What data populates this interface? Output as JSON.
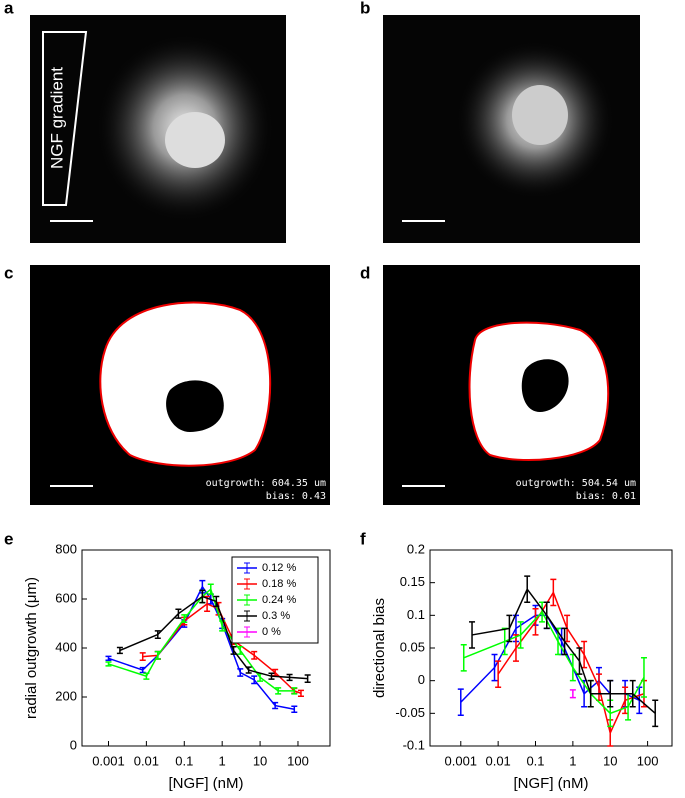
{
  "panels": {
    "a": {
      "letter": "a",
      "label": "NGF gradient"
    },
    "b": {
      "letter": "b"
    },
    "c": {
      "letter": "c",
      "outgrowth": "outgrowth: 604.35 um",
      "bias": "bias: 0.43"
    },
    "d": {
      "letter": "d",
      "outgrowth": "outgrowth: 504.54 um",
      "bias": "bias: 0.01"
    },
    "e": {
      "letter": "e"
    },
    "f": {
      "letter": "f"
    }
  },
  "chart_data": [
    {
      "type": "line",
      "xlabel": "[NGF] (nM)",
      "ylabel": "radial outgrowth (μm)",
      "xscale": "log",
      "xlim": [
        0.0002,
        700
      ],
      "ylim": [
        0,
        800
      ],
      "xticks": [
        0.001,
        0.01,
        0.1,
        1,
        10,
        100
      ],
      "yticks": [
        0,
        200,
        400,
        600,
        800
      ],
      "legend": "upper right",
      "series": [
        {
          "name": "0.12 %",
          "color": "#0000ff",
          "x": [
            0.001,
            0.008,
            0.02,
            0.1,
            0.3,
            0.5,
            1,
            3,
            7,
            25,
            80
          ],
          "values": [
            358,
            310,
            370,
            500,
            650,
            600,
            500,
            300,
            270,
            165,
            150
          ],
          "errors": [
            8,
            10,
            15,
            15,
            25,
            20,
            20,
            15,
            15,
            12,
            12
          ]
        },
        {
          "name": "0.18 %",
          "color": "#ff0000",
          "x": [
            0.008,
            0.02,
            0.1,
            0.4,
            0.8,
            2,
            7,
            25,
            80,
            120
          ],
          "values": [
            365,
            370,
            510,
            580,
            560,
            430,
            370,
            300,
            225,
            215
          ],
          "errors": [
            15,
            15,
            15,
            30,
            25,
            15,
            15,
            12,
            10,
            12
          ]
        },
        {
          "name": "0.24 %",
          "color": "#00ff00",
          "x": [
            0.001,
            0.01,
            0.02,
            0.1,
            0.3,
            0.5,
            1,
            3,
            10,
            30,
            80
          ],
          "values": [
            335,
            285,
            370,
            520,
            610,
            640,
            490,
            390,
            280,
            225,
            225
          ],
          "errors": [
            8,
            12,
            15,
            15,
            25,
            20,
            20,
            15,
            15,
            12,
            12
          ]
        },
        {
          "name": "0.3 %",
          "color": "#000000",
          "x": [
            0.002,
            0.02,
            0.07,
            0.3,
            0.7,
            2,
            5,
            20,
            60,
            180
          ],
          "values": [
            390,
            455,
            540,
            610,
            590,
            390,
            310,
            285,
            280,
            275
          ],
          "errors": [
            12,
            15,
            18,
            25,
            20,
            15,
            12,
            12,
            12,
            15
          ]
        },
        {
          "name": "0 %",
          "color": "#ff00ff",
          "x": [],
          "values": [],
          "errors": []
        }
      ]
    },
    {
      "type": "line",
      "xlabel": "[NGF] (nM)",
      "ylabel": "directional bias",
      "xscale": "log",
      "xlim": [
        0.00015,
        450
      ],
      "ylim": [
        -0.1,
        0.2
      ],
      "xticks": [
        0.001,
        0.01,
        0.1,
        1,
        10,
        100
      ],
      "yticks": [
        -0.1,
        -0.05,
        0,
        0.05,
        0.1,
        0.15,
        0.2
      ],
      "series": [
        {
          "name": "0.12 %",
          "color": "#0000ff",
          "x": [
            0.001,
            0.008,
            0.03,
            0.1,
            0.2,
            0.5,
            2,
            5,
            10,
            25,
            60
          ],
          "values": [
            -0.033,
            0.02,
            0.08,
            0.1,
            0.1,
            0.06,
            -0.02,
            0,
            -0.02,
            -0.02,
            -0.03
          ],
          "errors": [
            0.02,
            0.02,
            0.02,
            0.015,
            0.02,
            0.02,
            0.02,
            0.02,
            0.02,
            0.02,
            0.02
          ]
        },
        {
          "name": "0.18 %",
          "color": "#ff0000",
          "x": [
            0.01,
            0.03,
            0.1,
            0.3,
            0.7,
            2,
            5,
            10,
            25,
            80
          ],
          "values": [
            0.01,
            0.05,
            0.09,
            0.135,
            0.08,
            0.04,
            -0.01,
            -0.08,
            -0.03,
            -0.02
          ],
          "errors": [
            0.02,
            0.02,
            0.02,
            0.02,
            0.02,
            0.02,
            0.02,
            0.02,
            0.02,
            0.02
          ]
        },
        {
          "name": "0.24 %",
          "color": "#00ff00",
          "x": [
            0.0012,
            0.015,
            0.04,
            0.15,
            0.4,
            1,
            3,
            10,
            30,
            80
          ],
          "values": [
            0.035,
            0.06,
            0.07,
            0.105,
            0.06,
            0.02,
            -0.02,
            -0.05,
            -0.04,
            0.005
          ],
          "errors": [
            0.02,
            0.02,
            0.02,
            0.015,
            0.02,
            0.02,
            0.02,
            0.02,
            0.02,
            0.03
          ]
        },
        {
          "name": "0.3 %",
          "color": "#000000",
          "x": [
            0.002,
            0.02,
            0.06,
            0.2,
            0.6,
            1.5,
            3,
            10,
            40,
            160
          ],
          "values": [
            0.07,
            0.08,
            0.14,
            0.1,
            0.06,
            0.03,
            -0.02,
            -0.02,
            -0.02,
            -0.05
          ],
          "errors": [
            0.02,
            0.02,
            0.02,
            0.02,
            0.02,
            0.02,
            0.02,
            0.02,
            0.02,
            0.02
          ]
        },
        {
          "name": "0 %",
          "color": "#ff00ff",
          "x": [
            1
          ],
          "values": [
            -0.02
          ],
          "errors": [
            0.006
          ]
        }
      ]
    }
  ]
}
